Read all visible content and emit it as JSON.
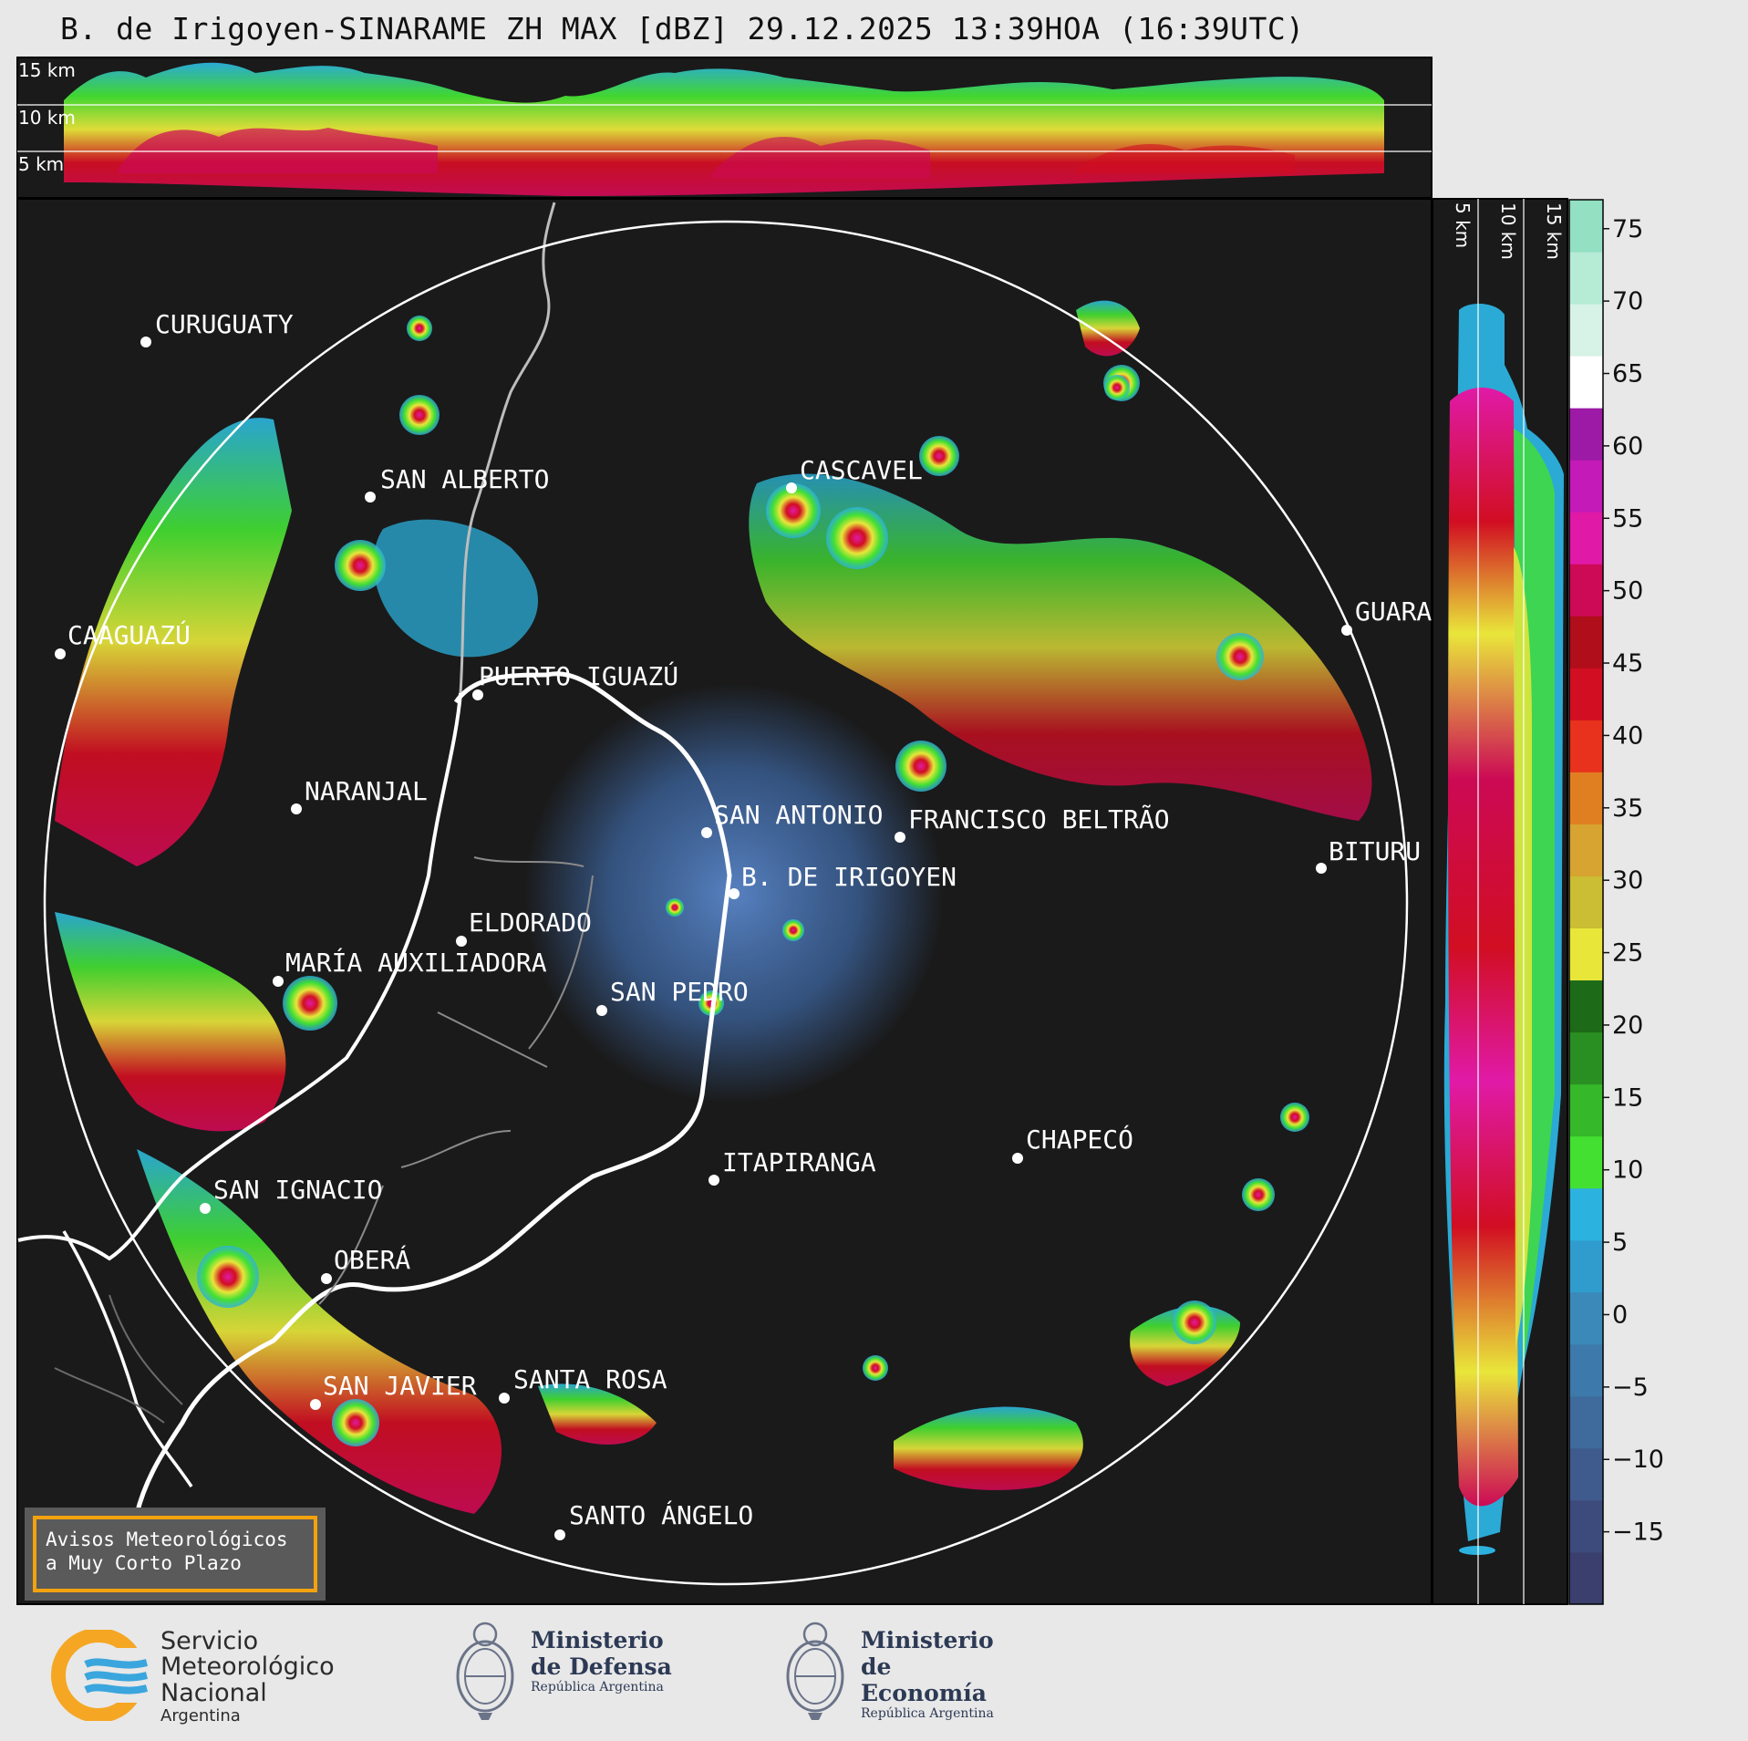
{
  "title": "B. de Irigoyen-SINARAME ZH MAX [dBZ] 29.12.2025 13:39HOA (16:39UTC)",
  "height_labels_top": [
    "15 km",
    "10 km",
    "5 km"
  ],
  "height_labels_side": [
    "5 km",
    "10 km",
    "15 km"
  ],
  "places": [
    {
      "name": "CURUGUATY"
    },
    {
      "name": "SAN ALBERTO"
    },
    {
      "name": "CAAGUAZÚ"
    },
    {
      "name": "CASCAVEL"
    },
    {
      "name": "GUARAPUAVA",
      "shown": "GUARA"
    },
    {
      "name": "PUERTO IGUAZÚ"
    },
    {
      "name": "NARANJAL"
    },
    {
      "name": "SAN ANTONIO"
    },
    {
      "name": "FRANCISCO BELTRÃO"
    },
    {
      "name": "BITURUNA",
      "shown": "BITURU"
    },
    {
      "name": "B. DE IRIGOYEN"
    },
    {
      "name": "ELDORADO"
    },
    {
      "name": "MARÍA AUXILIADORA"
    },
    {
      "name": "SAN PEDRO"
    },
    {
      "name": "CHAPECÓ"
    },
    {
      "name": "ITAPIRANGA"
    },
    {
      "name": "SAN IGNACIO"
    },
    {
      "name": "OBERÁ"
    },
    {
      "name": "SAN JAVIER"
    },
    {
      "name": "SANTA ROSA"
    },
    {
      "name": "SANTO ÁNGELO"
    }
  ],
  "colorbar": {
    "unit": "dBZ",
    "ticks": [
      75,
      70,
      65,
      60,
      55,
      50,
      45,
      40,
      35,
      30,
      25,
      20,
      15,
      10,
      5,
      0,
      -5,
      -10,
      -15
    ],
    "tick_labels": [
      "75",
      "70",
      "65",
      "60",
      "55",
      "50",
      "45",
      "40",
      "35",
      "30",
      "25",
      "20",
      "15",
      "10",
      "5",
      "0",
      "−5",
      "−10",
      "−15"
    ],
    "range": [
      -20,
      77
    ],
    "colors": [
      "#3a3f6e",
      "#3d4a7c",
      "#3f5a8c",
      "#3f6a9c",
      "#3d79ab",
      "#3a89b8",
      "#2f9ccd",
      "#2cb2df",
      "#43e032",
      "#35b82a",
      "#2a8f22",
      "#1d6a18",
      "#e9e63a",
      "#cbbd34",
      "#d7a431",
      "#e07f22",
      "#e8321d",
      "#d10e22",
      "#b00e1a",
      "#cc0a55",
      "#e01aa7",
      "#c31ab8",
      "#9c1aa5",
      "#ffffff",
      "#d7f2e6",
      "#b6ebd6",
      "#93e0c2"
    ]
  },
  "warning": {
    "line1": "Avisos Meteorológicos",
    "line2": "a Muy Corto Plazo"
  },
  "logos": {
    "smn": {
      "line1": "Servicio",
      "line2": "Meteorológico",
      "line3": "Nacional",
      "line4": "Argentina"
    },
    "defensa": {
      "line1": "Ministerio",
      "line2": "de Defensa",
      "line3": "República Argentina"
    },
    "economia": {
      "line1": "Ministerio",
      "line2": "de Economía",
      "line3": "República Argentina"
    }
  }
}
